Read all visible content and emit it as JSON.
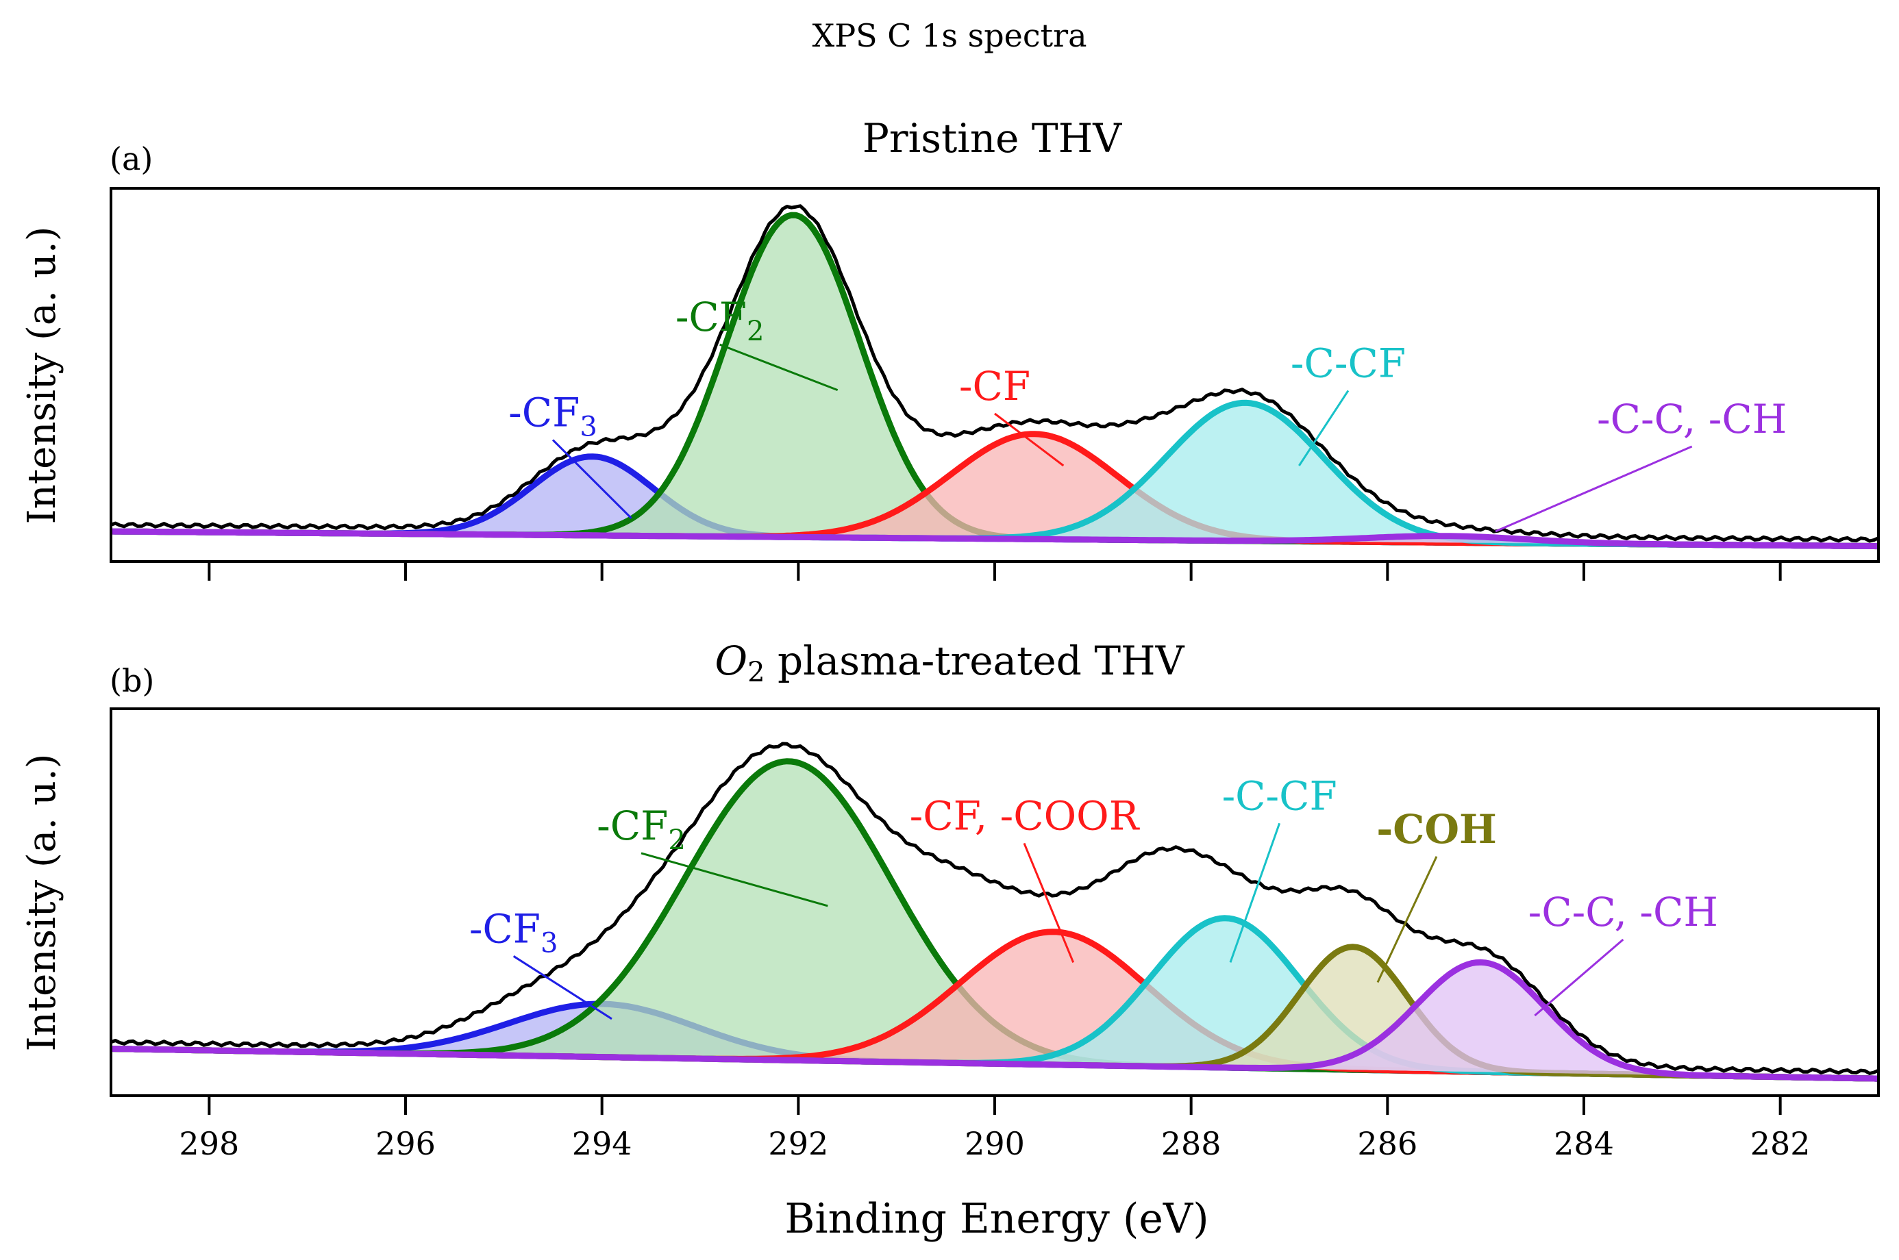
{
  "chart_data": {
    "type": "line",
    "title": "XPS C 1s spectra",
    "xlabel": "Binding Energy (eV)",
    "ylabel": "Intensity (a. u.)",
    "xlim": [
      299,
      281
    ],
    "x_ticks": [
      298,
      296,
      294,
      292,
      290,
      288,
      286,
      284,
      282
    ],
    "x_reversed": true,
    "ylim": [
      0,
      1.1
    ],
    "grid": false,
    "panels": [
      {
        "id": "a",
        "letter": "(a)",
        "title": "Pristine THV",
        "baseline_start": 0.05,
        "baseline_end": 0.005,
        "envelope_extra": [
          {
            "center": 293.3,
            "amplitude": 0.05,
            "sigma": 0.45
          },
          {
            "center": 290.5,
            "amplitude": 0.04,
            "sigma": 0.45
          },
          {
            "center": 288.5,
            "amplitude": 0.03,
            "sigma": 0.4
          }
        ],
        "series": [
          {
            "name": "-CF3",
            "label_main": "-CF",
            "label_sub": "3",
            "color": "#1f1fe6",
            "fill": "#b3b3f5",
            "center": 294.1,
            "amplitude": 0.24,
            "sigma": 0.62,
            "label_x": 294.5,
            "label_y": 0.37,
            "point_x": 293.7,
            "point_y": 0.09
          },
          {
            "name": "-CF2",
            "label_main": "-CF",
            "label_sub": "2",
            "color": "#0a7a0a",
            "fill": "#b3e0b5",
            "center": 292.05,
            "amplitude": 0.98,
            "sigma": 0.68,
            "label_x": 292.8,
            "label_y": 0.66,
            "point_x": 291.6,
            "point_y": 0.48
          },
          {
            "name": "-CF",
            "label_main": "-CF",
            "label_sub": "",
            "color": "#ff1a1a",
            "fill": "#f8b4b4",
            "center": 289.6,
            "amplitude": 0.32,
            "sigma": 0.85,
            "label_x": 290.0,
            "label_y": 0.45,
            "point_x": 289.3,
            "point_y": 0.25
          },
          {
            "name": "-C-CF",
            "label_main": "-C-CF",
            "label_sub": "",
            "color": "#18c2c8",
            "fill": "#a6ecee",
            "center": 287.45,
            "amplitude": 0.42,
            "sigma": 0.8,
            "label_x": 286.4,
            "label_y": 0.52,
            "point_x": 286.9,
            "point_y": 0.25
          },
          {
            "name": "-C-C, -CH",
            "label_main": "-C-C, -CH",
            "label_sub": "",
            "color": "#9b30e0",
            "fill": "#e0c2f5",
            "center": 285.4,
            "amplitude": 0.02,
            "sigma": 0.8,
            "label_x": 282.9,
            "label_y": 0.35,
            "point_x": 284.9,
            "point_y": 0.05
          }
        ]
      },
      {
        "id": "b",
        "letter": "(b)",
        "title": "O2 plasma-treated THV",
        "title_main": "O",
        "title_sub": "2",
        "title_rest": " plasma-treated THV",
        "baseline_start": 0.1,
        "baseline_end": 0.01,
        "envelope_extra": [
          {
            "center": 290.4,
            "amplitude": 0.1,
            "sigma": 0.5
          },
          {
            "center": 288.4,
            "amplitude": 0.12,
            "sigma": 0.5
          },
          {
            "center": 294.9,
            "amplitude": 0.04,
            "sigma": 0.6
          }
        ],
        "series": [
          {
            "name": "-CF3",
            "label_main": "-CF",
            "label_sub": "3",
            "color": "#1f1fe6",
            "fill": "#b3b3f5",
            "center": 294.0,
            "amplitude": 0.16,
            "sigma": 0.95,
            "label_x": 294.9,
            "label_y": 0.42,
            "point_x": 293.9,
            "point_y": 0.19
          },
          {
            "name": "-CF2",
            "label_main": "-CF",
            "label_sub": "2",
            "color": "#0a7a0a",
            "fill": "#b3e0b5",
            "center": 292.1,
            "amplitude": 0.9,
            "sigma": 1.05,
            "label_x": 293.6,
            "label_y": 0.73,
            "point_x": 291.7,
            "point_y": 0.53
          },
          {
            "name": "-CF, -COOR",
            "label_main": "-CF, -COOR",
            "label_sub": "",
            "color": "#ff1a1a",
            "fill": "#f8b4b4",
            "center": 289.4,
            "amplitude": 0.4,
            "sigma": 0.95,
            "label_x": 289.7,
            "label_y": 0.76,
            "point_x": 289.2,
            "point_y": 0.36
          },
          {
            "name": "-C-CF",
            "label_main": "-C-CF",
            "label_sub": "",
            "color": "#18c2c8",
            "fill": "#a6ecee",
            "center": 287.65,
            "amplitude": 0.45,
            "sigma": 0.75,
            "label_x": 287.1,
            "label_y": 0.82,
            "point_x": 287.6,
            "point_y": 0.36
          },
          {
            "name": "-COH",
            "label_main": "-COH",
            "label_sub": "",
            "color": "#7a7a10",
            "fill": "#ddddb5",
            "center": 286.35,
            "amplitude": 0.37,
            "sigma": 0.55,
            "label_x": 285.5,
            "label_y": 0.72,
            "point_x": 286.1,
            "point_y": 0.3
          },
          {
            "name": "-C-C, -CH",
            "label_main": "-C-C, -CH",
            "label_sub": "",
            "color": "#9b30e0",
            "fill": "#e0c2f5",
            "center": 285.05,
            "amplitude": 0.33,
            "sigma": 0.65,
            "label_x": 283.6,
            "label_y": 0.47,
            "point_x": 284.5,
            "point_y": 0.2
          }
        ]
      }
    ]
  }
}
